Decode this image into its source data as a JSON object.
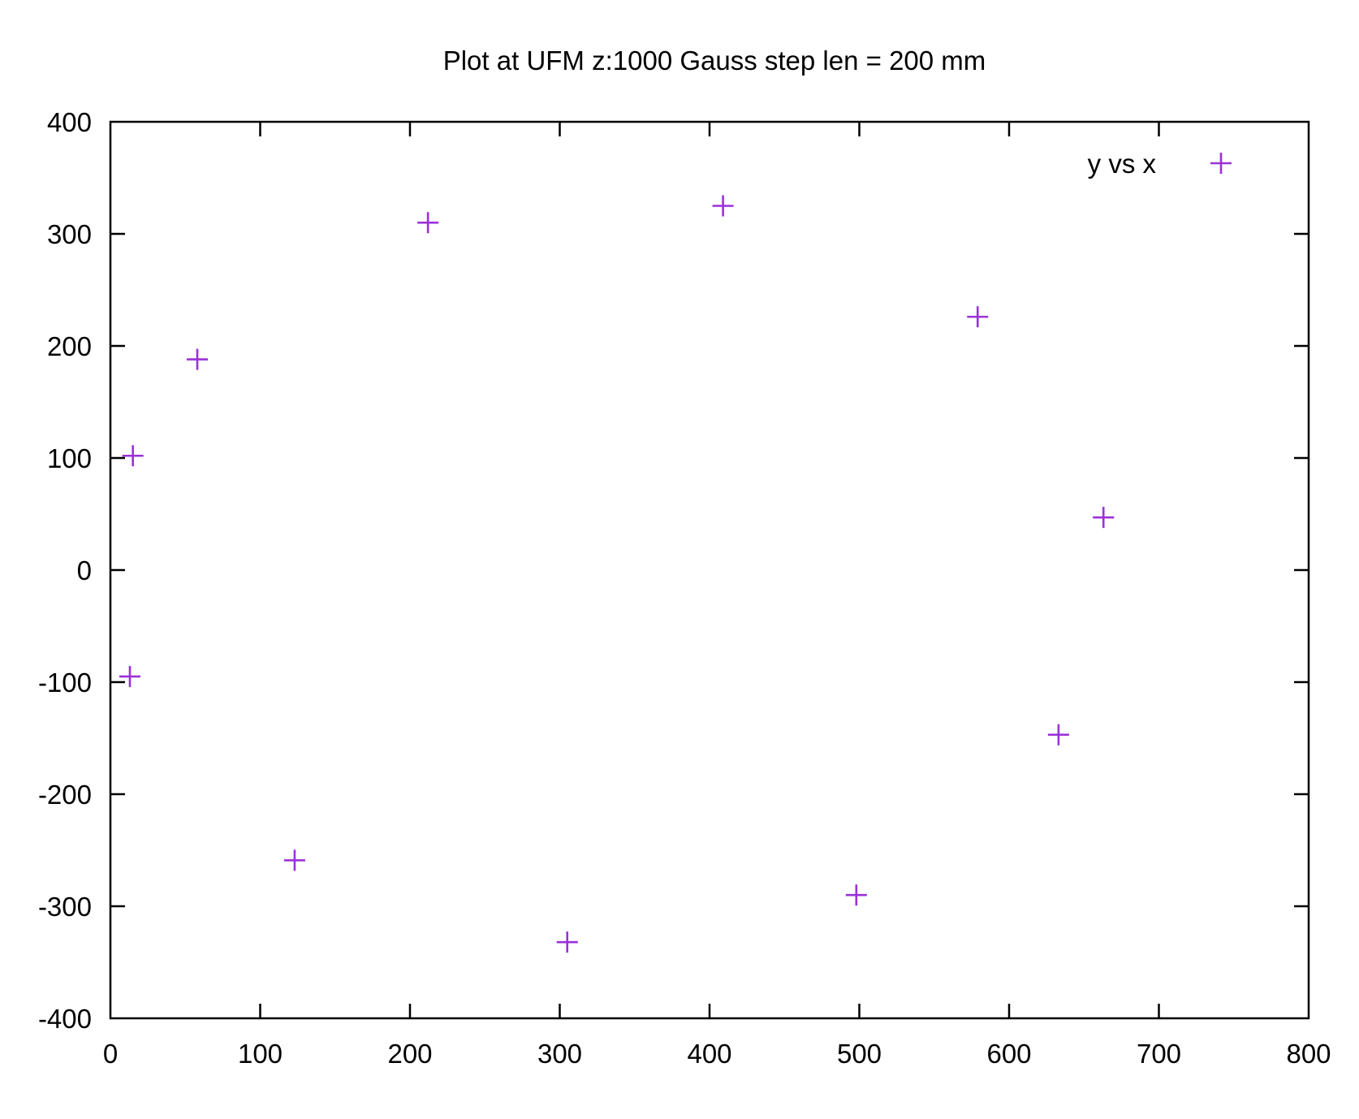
{
  "chart_data": {
    "type": "scatter",
    "title": "Plot at UFM z:1000 Gauss step len = 200 mm",
    "xlabel": "",
    "ylabel": "",
    "xlim": [
      0,
      800
    ],
    "ylim": [
      -400,
      400
    ],
    "x_ticks": [
      "0",
      "100",
      "200",
      "300",
      "400",
      "500",
      "600",
      "700",
      "800"
    ],
    "y_ticks": [
      "400",
      "300",
      "200",
      "100",
      "0",
      "-100",
      "-200",
      "-300",
      "-400"
    ],
    "x_tick_values": [
      0,
      100,
      200,
      300,
      400,
      500,
      600,
      700,
      800
    ],
    "y_tick_values": [
      400,
      300,
      200,
      100,
      0,
      -100,
      -200,
      -300,
      -400
    ],
    "grid": false,
    "legend_position": "top-right",
    "series": [
      {
        "name": "y vs x",
        "color": "#9B30D9",
        "marker": "plus",
        "points": [
          {
            "x": 13,
            "y": -95
          },
          {
            "x": 15,
            "y": 102
          },
          {
            "x": 58,
            "y": 188
          },
          {
            "x": 123,
            "y": -259
          },
          {
            "x": 212,
            "y": 310
          },
          {
            "x": 305,
            "y": -332
          },
          {
            "x": 409,
            "y": 325
          },
          {
            "x": 498,
            "y": -290
          },
          {
            "x": 579,
            "y": 226
          },
          {
            "x": 633,
            "y": -147
          },
          {
            "x": 663,
            "y": 47
          }
        ]
      }
    ]
  }
}
